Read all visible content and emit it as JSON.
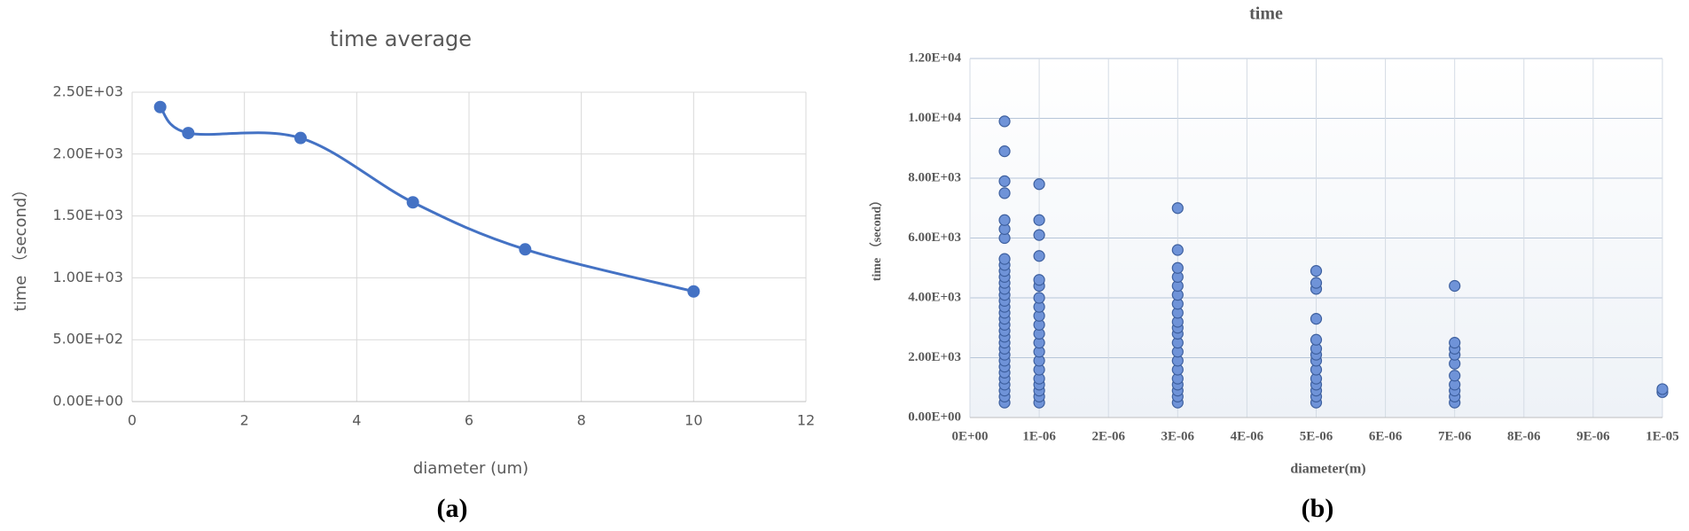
{
  "chart_data": [
    {
      "type": "line",
      "title": "time average",
      "xlabel": "diameter (um)",
      "ylabel": "time （second）",
      "caption": "(a)",
      "color": "#4472c4",
      "smooth": true,
      "grid": true,
      "x": [
        0.5,
        1,
        3,
        5,
        7,
        10
      ],
      "values": [
        2380,
        2170,
        2130,
        1610,
        1230,
        890
      ],
      "xlim": [
        0,
        12
      ],
      "xticks": [
        0,
        2,
        4,
        6,
        8,
        10,
        12
      ],
      "ylim": [
        0,
        2500
      ],
      "yticks": [
        {
          "value": 0,
          "label": "0.00E+00"
        },
        {
          "value": 500,
          "label": "5.00E+02"
        },
        {
          "value": 1000,
          "label": "1.00E+03"
        },
        {
          "value": 1500,
          "label": "1.50E+03"
        },
        {
          "value": 2000,
          "label": "2.00E+03"
        },
        {
          "value": 2500,
          "label": "2.50E+03"
        }
      ]
    },
    {
      "type": "scatter",
      "title": "time",
      "xlabel": "diameter(m)",
      "ylabel": "time （second）",
      "caption": "(b)",
      "color": "#6f93d8",
      "grid": true,
      "x": [
        5e-07,
        5e-07,
        5e-07,
        5e-07,
        5e-07,
        5e-07,
        5e-07,
        5e-07,
        5e-07,
        5e-07,
        5e-07,
        5e-07,
        5e-07,
        5e-07,
        5e-07,
        5e-07,
        5e-07,
        5e-07,
        5e-07,
        5e-07,
        5e-07,
        5e-07,
        5e-07,
        5e-07,
        5e-07,
        5e-07,
        5e-07,
        5e-07,
        5e-07,
        5e-07,
        5e-07,
        5e-07,
        1e-06,
        1e-06,
        1e-06,
        1e-06,
        1e-06,
        1e-06,
        1e-06,
        1e-06,
        1e-06,
        1e-06,
        1e-06,
        1e-06,
        1e-06,
        1e-06,
        1e-06,
        1e-06,
        1e-06,
        1e-06,
        1e-06,
        1e-06,
        3e-06,
        3e-06,
        3e-06,
        3e-06,
        3e-06,
        3e-06,
        3e-06,
        3e-06,
        3e-06,
        3e-06,
        3e-06,
        3e-06,
        3e-06,
        3e-06,
        3e-06,
        3e-06,
        3e-06,
        3e-06,
        3e-06,
        3e-06,
        5e-06,
        5e-06,
        5e-06,
        5e-06,
        5e-06,
        5e-06,
        5e-06,
        5e-06,
        5e-06,
        5e-06,
        5e-06,
        5e-06,
        5e-06,
        5e-06,
        7e-06,
        7e-06,
        7e-06,
        7e-06,
        7e-06,
        7e-06,
        7e-06,
        7e-06,
        7e-06,
        7e-06,
        1e-05,
        1e-05
      ],
      "values": [
        500,
        700,
        900,
        1100,
        1300,
        1500,
        1700,
        1900,
        2100,
        2300,
        2500,
        2700,
        2900,
        3100,
        3300,
        3500,
        3700,
        3900,
        4100,
        4300,
        4500,
        4700,
        4900,
        5100,
        5300,
        6000,
        6300,
        6600,
        7500,
        7900,
        8900,
        9900,
        500,
        700,
        900,
        1100,
        1300,
        1600,
        1900,
        2200,
        2500,
        2800,
        3100,
        3400,
        3700,
        4000,
        4400,
        4600,
        5400,
        6100,
        6600,
        7800,
        500,
        700,
        900,
        1100,
        1300,
        1600,
        1900,
        2200,
        2500,
        2800,
        3000,
        3200,
        3500,
        3800,
        4100,
        4400,
        4700,
        5000,
        5600,
        7000,
        500,
        700,
        900,
        1100,
        1300,
        1600,
        1900,
        2100,
        2300,
        2600,
        3300,
        4300,
        4500,
        4900,
        500,
        700,
        900,
        1100,
        1400,
        1800,
        2100,
        2300,
        2500,
        4400,
        850,
        950
      ],
      "xlim": [
        0,
        1e-05
      ],
      "xticks": [
        {
          "value": 0,
          "label": "0E+00"
        },
        {
          "value": 1e-06,
          "label": "1E-06"
        },
        {
          "value": 2e-06,
          "label": "2E-06"
        },
        {
          "value": 3e-06,
          "label": "3E-06"
        },
        {
          "value": 4e-06,
          "label": "4E-06"
        },
        {
          "value": 5e-06,
          "label": "5E-06"
        },
        {
          "value": 6e-06,
          "label": "6E-06"
        },
        {
          "value": 7e-06,
          "label": "7E-06"
        },
        {
          "value": 8e-06,
          "label": "8E-06"
        },
        {
          "value": 9e-06,
          "label": "9E-06"
        },
        {
          "value": 1e-05,
          "label": "1E-05"
        }
      ],
      "ylim": [
        0,
        12000
      ],
      "yticks": [
        {
          "value": 0,
          "label": "0.00E+00"
        },
        {
          "value": 2000,
          "label": "2.00E+03"
        },
        {
          "value": 4000,
          "label": "4.00E+03"
        },
        {
          "value": 6000,
          "label": "6.00E+03"
        },
        {
          "value": 8000,
          "label": "8.00E+03"
        },
        {
          "value": 10000,
          "label": "1.00E+04"
        },
        {
          "value": 12000,
          "label": "1.20E+04"
        }
      ]
    }
  ]
}
